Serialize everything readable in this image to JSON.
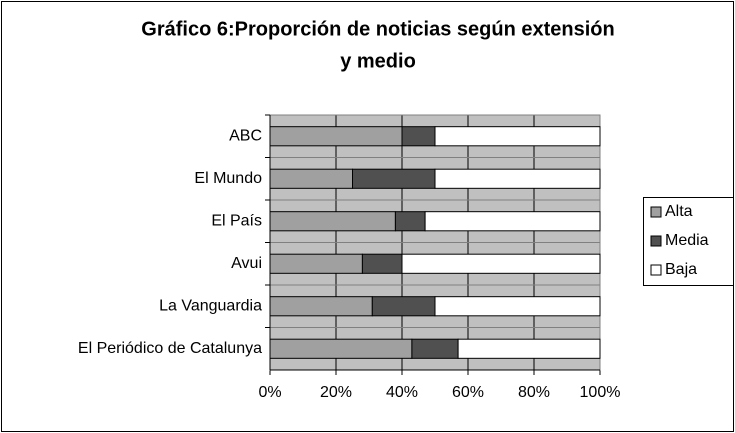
{
  "chart_data": {
    "type": "stacked_bar_horizontal",
    "title": "Gráfico 6:Proporción de noticias según extensión",
    "subtitle": "y medio",
    "categories": [
      "ABC",
      "El Mundo",
      "El País",
      "Avui",
      "La Vanguardia",
      "El Periódico de Catalunya"
    ],
    "series": [
      {
        "name": "Alta",
        "color": "#a0a0a0",
        "values": [
          40,
          25,
          38,
          28,
          31,
          43
        ]
      },
      {
        "name": "Media",
        "color": "#505050",
        "values": [
          10,
          25,
          9,
          12,
          19,
          14
        ]
      },
      {
        "name": "Baja",
        "color": "#ffffff",
        "values": [
          50,
          50,
          53,
          60,
          50,
          43
        ]
      }
    ],
    "xlim": [
      0,
      100
    ],
    "xticks": [
      {
        "value": 0,
        "label": "0%"
      },
      {
        "value": 20,
        "label": "20%"
      },
      {
        "value": 40,
        "label": "40%"
      },
      {
        "value": 60,
        "label": "60%"
      },
      {
        "value": 80,
        "label": "80%"
      },
      {
        "value": 100,
        "label": "100%"
      }
    ],
    "grid": true,
    "legend": "right"
  }
}
